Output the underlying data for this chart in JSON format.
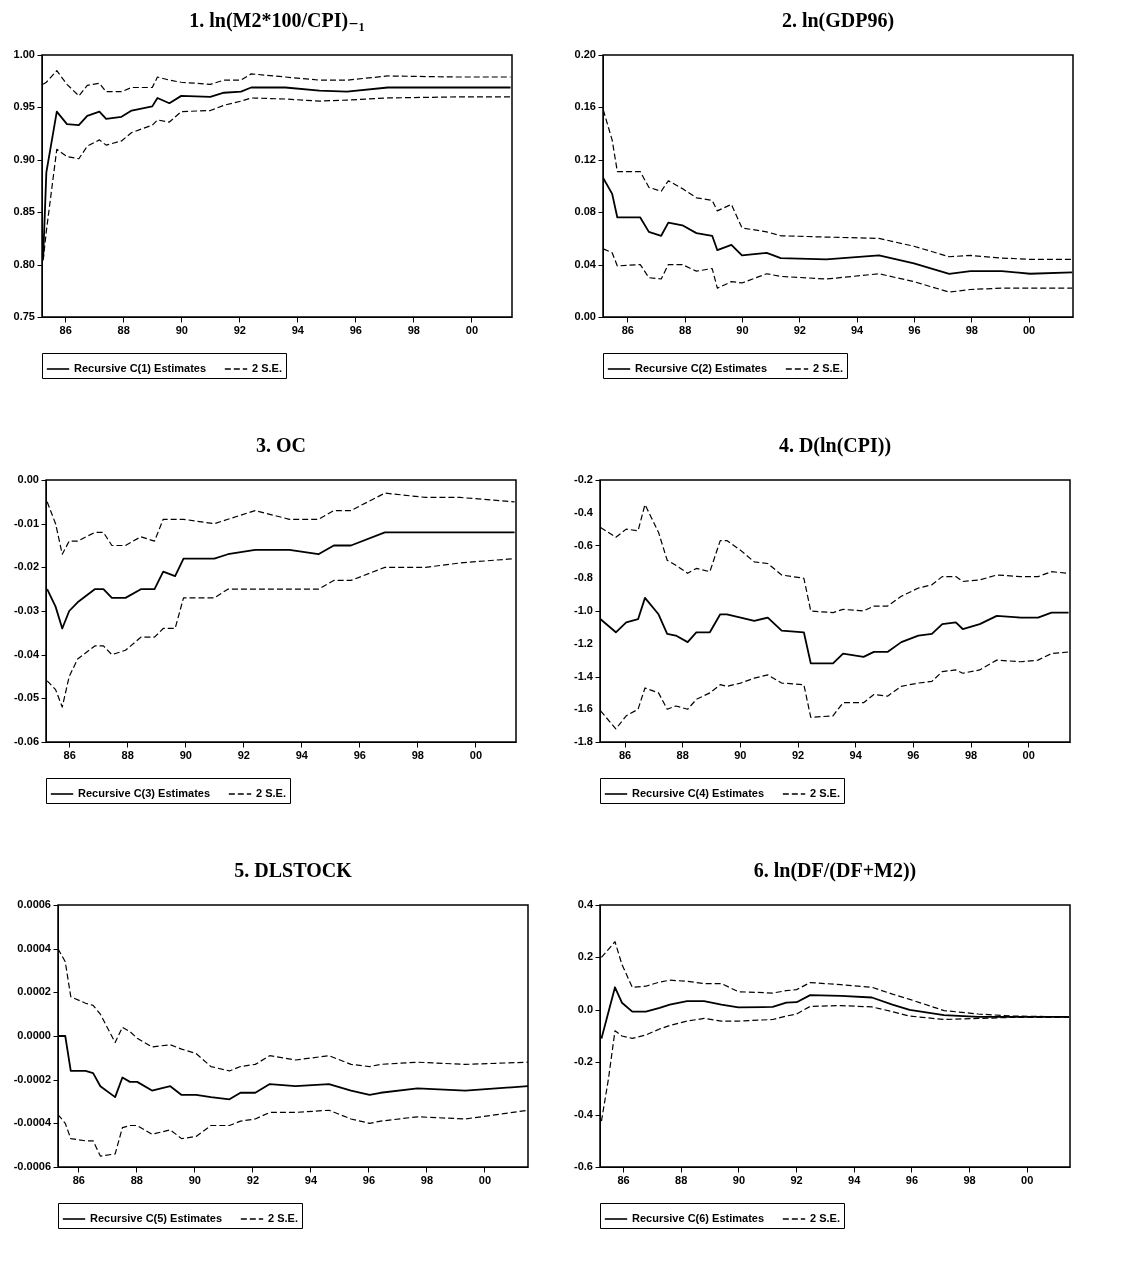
{
  "chart_data": [
    {
      "type": "line",
      "title": "1. ln(M2*100/CPI)₋₁",
      "legend": "bottom",
      "xlim": [
        1985.2,
        2001.4
      ],
      "ylim": [
        0.75,
        1.0
      ],
      "xticks": [
        {
          "value": 1986,
          "label": "86"
        },
        {
          "value": 1988,
          "label": "88"
        },
        {
          "value": 1990,
          "label": "90"
        },
        {
          "value": 1992,
          "label": "92"
        },
        {
          "value": 1994,
          "label": "94"
        },
        {
          "value": 1996,
          "label": "96"
        },
        {
          "value": 1998,
          "label": "98"
        },
        {
          "value": 2000,
          "label": "00"
        }
      ],
      "yticks": [
        0.75,
        {
          "value": 0.8,
          "label": "0.80"
        },
        0.85,
        {
          "value": 0.9,
          "label": "0.90"
        },
        0.95,
        {
          "value": 1.0,
          "label": "1.00"
        }
      ],
      "x": [
        1985.24,
        1985.35,
        1985.71,
        1986.06,
        1986.47,
        1986.76,
        1987.18,
        1987.41,
        1987.94,
        1988.29,
        1989.0,
        1989.18,
        1989.59,
        1990.0,
        1991.0,
        1991.47,
        1992.06,
        1992.41,
        1993.59,
        1994.76,
        1995.71,
        1997.12,
        1999.47,
        2001.35
      ],
      "series": [
        {
          "name": "Recursive C(1) Estimates",
          "color": "#000000",
          "line_style": "solid",
          "values": [
            0.806,
            0.888,
            0.946,
            0.934,
            0.933,
            0.942,
            0.946,
            0.939,
            0.941,
            0.947,
            0.951,
            0.959,
            0.954,
            0.961,
            0.96,
            0.964,
            0.965,
            0.969,
            0.969,
            0.966,
            0.965,
            0.969,
            0.969,
            0.969
          ]
        },
        {
          "name": "2 S.E.",
          "color": "#000000",
          "line_style": "dashed",
          "values": [
            0.972,
            0.974,
            0.985,
            0.972,
            0.961,
            0.971,
            0.973,
            0.965,
            0.965,
            0.969,
            0.969,
            0.979,
            0.976,
            0.974,
            0.972,
            0.976,
            0.976,
            0.982,
            0.979,
            0.976,
            0.976,
            0.98,
            0.979,
            0.979
          ]
        },
        {
          "color": "#000000",
          "line_style": "dashed",
          "values": [
            0.804,
            0.832,
            0.91,
            0.903,
            0.901,
            0.913,
            0.919,
            0.914,
            0.918,
            0.926,
            0.933,
            0.938,
            0.936,
            0.946,
            0.947,
            0.952,
            0.956,
            0.959,
            0.958,
            0.956,
            0.957,
            0.959,
            0.96,
            0.96
          ]
        }
      ]
    },
    {
      "type": "line",
      "title": "2. ln(GDP96)",
      "legend": "bottom",
      "xlim": [
        1985.15,
        2001.55
      ],
      "ylim": [
        0,
        0.2
      ],
      "xticks": [
        {
          "value": 1986,
          "label": "86"
        },
        {
          "value": 1988,
          "label": "88"
        },
        {
          "value": 1990,
          "label": "90"
        },
        {
          "value": 1992,
          "label": "92"
        },
        {
          "value": 1994,
          "label": "94"
        },
        {
          "value": 1996,
          "label": "96"
        },
        {
          "value": 1998,
          "label": "98"
        },
        {
          "value": 2000,
          "label": "00"
        }
      ],
      "yticks": [
        {
          "value": 0,
          "label": "0.00"
        },
        0.04,
        0.08,
        0.12,
        0.16,
        {
          "value": 0.2,
          "label": "0.20"
        }
      ],
      "x": [
        1985.16,
        1985.47,
        1985.65,
        1986.45,
        1986.75,
        1987.18,
        1987.43,
        1987.92,
        1988.41,
        1988.96,
        1989.14,
        1989.63,
        1990.0,
        1990.86,
        1991.35,
        1992.94,
        1994.78,
        1996.0,
        1997.23,
        1997.97,
        1999.07,
        2000.05,
        2001.52
      ],
      "series": [
        {
          "name": "Recursive C(2) Estimates",
          "color": "#000000",
          "line_style": "solid",
          "values": [
            0.106,
            0.094,
            0.076,
            0.076,
            0.065,
            0.062,
            0.072,
            0.07,
            0.064,
            0.062,
            0.051,
            0.055,
            0.047,
            0.049,
            0.045,
            0.044,
            0.047,
            0.041,
            0.033,
            0.035,
            0.035,
            0.033,
            0.034
          ]
        },
        {
          "name": "2 S.E.",
          "color": "#000000",
          "line_style": "dashed",
          "values": [
            0.158,
            0.135,
            0.111,
            0.111,
            0.099,
            0.096,
            0.104,
            0.098,
            0.091,
            0.089,
            0.081,
            0.086,
            0.068,
            0.065,
            0.062,
            0.061,
            0.06,
            0.054,
            0.046,
            0.047,
            0.045,
            0.044,
            0.044
          ]
        },
        {
          "color": "#000000",
          "line_style": "dashed",
          "values": [
            0.052,
            0.049,
            0.039,
            0.04,
            0.03,
            0.029,
            0.04,
            0.04,
            0.035,
            0.037,
            0.022,
            0.027,
            0.026,
            0.033,
            0.031,
            0.029,
            0.033,
            0.027,
            0.019,
            0.021,
            0.022,
            0.022,
            0.022
          ]
        }
      ]
    },
    {
      "type": "line",
      "title": "3. OC",
      "legend": "bottom",
      "xlim": [
        1985.2,
        2001.4
      ],
      "ylim": [
        -0.06,
        0
      ],
      "xticks": [
        {
          "value": 1986,
          "label": "86"
        },
        {
          "value": 1988,
          "label": "88"
        },
        {
          "value": 1990,
          "label": "90"
        },
        {
          "value": 1992,
          "label": "92"
        },
        {
          "value": 1994,
          "label": "94"
        },
        {
          "value": 1996,
          "label": "96"
        },
        {
          "value": 1998,
          "label": "98"
        },
        {
          "value": 2000,
          "label": "00"
        }
      ],
      "yticks": [
        -0.06,
        -0.05,
        -0.04,
        -0.03,
        -0.02,
        -0.01,
        {
          "value": 0,
          "label": "0.00"
        }
      ],
      "x": [
        1985.24,
        1985.53,
        1985.76,
        1986.0,
        1986.29,
        1986.88,
        1987.18,
        1987.47,
        1987.94,
        1988.47,
        1988.94,
        1989.24,
        1989.65,
        1989.94,
        1991.0,
        1991.47,
        1992.41,
        1993.59,
        1994.59,
        1995.12,
        1995.71,
        1996.88,
        1998.29,
        1999.47,
        2001.35
      ],
      "series": [
        {
          "name": "Recursive C(3) Estimates",
          "color": "#000000",
          "line_style": "solid",
          "values": [
            -0.025,
            -0.029,
            -0.034,
            -0.03,
            -0.028,
            -0.025,
            -0.025,
            -0.027,
            -0.027,
            -0.025,
            -0.025,
            -0.021,
            -0.022,
            -0.018,
            -0.018,
            -0.017,
            -0.016,
            -0.016,
            -0.017,
            -0.015,
            -0.015,
            -0.012,
            -0.012,
            -0.012,
            -0.012
          ]
        },
        {
          "name": "2 S.E.",
          "color": "#000000",
          "line_style": "dashed",
          "values": [
            -0.005,
            -0.01,
            -0.017,
            -0.014,
            -0.014,
            -0.012,
            -0.012,
            -0.015,
            -0.015,
            -0.013,
            -0.014,
            -0.009,
            -0.009,
            -0.009,
            -0.01,
            -0.009,
            -0.007,
            -0.009,
            -0.009,
            -0.007,
            -0.007,
            -0.003,
            -0.004,
            -0.004,
            -0.005
          ]
        },
        {
          "color": "#000000",
          "line_style": "dashed",
          "values": [
            -0.046,
            -0.048,
            -0.052,
            -0.045,
            -0.041,
            -0.038,
            -0.038,
            -0.04,
            -0.039,
            -0.036,
            -0.036,
            -0.034,
            -0.034,
            -0.027,
            -0.027,
            -0.025,
            -0.025,
            -0.025,
            -0.025,
            -0.023,
            -0.023,
            -0.02,
            -0.02,
            -0.019,
            -0.018
          ]
        }
      ]
    },
    {
      "type": "line",
      "title": "4. D(ln(CPI))",
      "legend": "bottom",
      "xlim": [
        1985.15,
        2001.45
      ],
      "ylim": [
        -1.8,
        -0.2
      ],
      "xticks": [
        {
          "value": 1986,
          "label": "86"
        },
        {
          "value": 1988,
          "label": "88"
        },
        {
          "value": 1990,
          "label": "90"
        },
        {
          "value": 1992,
          "label": "92"
        },
        {
          "value": 1994,
          "label": "94"
        },
        {
          "value": 1996,
          "label": "96"
        },
        {
          "value": 1998,
          "label": "98"
        },
        {
          "value": 2000,
          "label": "00"
        }
      ],
      "yticks": [
        -1.8,
        -1.6,
        -1.4,
        -1.2,
        {
          "value": -1.0,
          "label": "-1.0"
        },
        -0.8,
        -0.6,
        -0.4,
        -0.2
      ],
      "x": [
        1985.17,
        1985.7,
        1986.06,
        1986.47,
        1986.71,
        1987.18,
        1987.48,
        1987.78,
        1988.19,
        1988.49,
        1988.96,
        1989.32,
        1989.55,
        1990.03,
        1990.5,
        1990.97,
        1991.45,
        1992.22,
        1992.46,
        1993.23,
        1993.58,
        1994.29,
        1994.65,
        1995.12,
        1995.6,
        1996.19,
        1996.66,
        1997.02,
        1997.49,
        1997.73,
        1998.32,
        1998.91,
        1999.74,
        2000.34,
        2000.81,
        2001.4
      ],
      "series": [
        {
          "name": "Recursive C(4) Estimates",
          "color": "#000000",
          "line_style": "solid",
          "values": [
            -1.05,
            -1.13,
            -1.07,
            -1.05,
            -0.92,
            -1.02,
            -1.14,
            -1.15,
            -1.19,
            -1.13,
            -1.13,
            -1.02,
            -1.02,
            -1.04,
            -1.06,
            -1.04,
            -1.12,
            -1.13,
            -1.32,
            -1.32,
            -1.26,
            -1.28,
            -1.25,
            -1.25,
            -1.19,
            -1.15,
            -1.14,
            -1.08,
            -1.07,
            -1.11,
            -1.08,
            -1.03,
            -1.04,
            -1.04,
            -1.01,
            -1.01
          ]
        },
        {
          "name": "2 S.E.",
          "color": "#000000",
          "line_style": "dashed",
          "values": [
            -0.49,
            -0.55,
            -0.5,
            -0.51,
            -0.35,
            -0.52,
            -0.69,
            -0.72,
            -0.77,
            -0.74,
            -0.76,
            -0.57,
            -0.57,
            -0.63,
            -0.7,
            -0.71,
            -0.78,
            -0.8,
            -1.0,
            -1.01,
            -0.99,
            -1.0,
            -0.97,
            -0.97,
            -0.91,
            -0.86,
            -0.84,
            -0.79,
            -0.79,
            -0.82,
            -0.81,
            -0.78,
            -0.79,
            -0.79,
            -0.76,
            -0.77
          ]
        },
        {
          "color": "#000000",
          "line_style": "dashed",
          "values": [
            -1.61,
            -1.72,
            -1.64,
            -1.6,
            -1.47,
            -1.5,
            -1.6,
            -1.58,
            -1.6,
            -1.54,
            -1.5,
            -1.45,
            -1.46,
            -1.44,
            -1.41,
            -1.39,
            -1.44,
            -1.45,
            -1.65,
            -1.64,
            -1.56,
            -1.56,
            -1.51,
            -1.52,
            -1.46,
            -1.44,
            -1.43,
            -1.37,
            -1.36,
            -1.38,
            -1.36,
            -1.3,
            -1.31,
            -1.3,
            -1.26,
            -1.25
          ]
        }
      ]
    },
    {
      "type": "line",
      "title": "5. DLSTOCK",
      "legend": "bottom",
      "xlim": [
        1985.3,
        2001.5
      ],
      "ylim": [
        -0.0006,
        0.0006
      ],
      "xticks": [
        {
          "value": 1986,
          "label": "86"
        },
        {
          "value": 1988,
          "label": "88"
        },
        {
          "value": 1990,
          "label": "90"
        },
        {
          "value": 1992,
          "label": "92"
        },
        {
          "value": 1994,
          "label": "94"
        },
        {
          "value": 1996,
          "label": "96"
        },
        {
          "value": 1998,
          "label": "98"
        },
        {
          "value": 2000,
          "label": "00"
        }
      ],
      "yticks": [
        -0.0006,
        -0.0004,
        -0.0002,
        {
          "value": 0,
          "label": "0.0000"
        },
        0.0002,
        0.0004,
        0.0006
      ],
      "x": [
        1985.3,
        1985.55,
        1985.74,
        1986.25,
        1986.51,
        1986.76,
        1987.27,
        1987.52,
        1987.78,
        1988.03,
        1988.54,
        1989.17,
        1989.56,
        1990.06,
        1990.57,
        1991.21,
        1991.59,
        1992.1,
        1992.6,
        1993.49,
        1994.64,
        1995.4,
        1996.04,
        1996.42,
        1997.69,
        1999.34,
        2001.5
      ],
      "series": [
        {
          "name": "Recursive C(5) Estimates",
          "color": "#000000",
          "line_style": "solid",
          "values": [
            0,
            0,
            -0.00016,
            -0.00016,
            -0.00017,
            -0.00023,
            -0.00028,
            -0.00019,
            -0.00021,
            -0.00021,
            -0.00025,
            -0.00023,
            -0.00027,
            -0.00027,
            -0.00028,
            -0.00029,
            -0.00026,
            -0.00026,
            -0.00022,
            -0.00023,
            -0.00022,
            -0.00025,
            -0.00027,
            -0.00026,
            -0.00024,
            -0.00025,
            -0.00023
          ]
        },
        {
          "name": "2 S.E.",
          "color": "#000000",
          "line_style": "dashed",
          "values": [
            0.0004,
            0.00034,
            0.00018,
            0.00015,
            0.00014,
            0.0001,
            -3e-05,
            4e-05,
            2e-05,
            -1e-05,
            -5e-05,
            -4e-05,
            -6e-05,
            -8e-05,
            -0.00014,
            -0.00016,
            -0.00014,
            -0.00013,
            -9e-05,
            -0.00011,
            -9e-05,
            -0.00013,
            -0.00014,
            -0.00013,
            -0.00012,
            -0.00013,
            -0.00012
          ]
        },
        {
          "color": "#000000",
          "line_style": "dashed",
          "values": [
            -0.00036,
            -0.0004,
            -0.00047,
            -0.00048,
            -0.00048,
            -0.00055,
            -0.00054,
            -0.00042,
            -0.00041,
            -0.00041,
            -0.00045,
            -0.00043,
            -0.00047,
            -0.00046,
            -0.00041,
            -0.00041,
            -0.00039,
            -0.00038,
            -0.00035,
            -0.00035,
            -0.00034,
            -0.00038,
            -0.0004,
            -0.00039,
            -0.00037,
            -0.00038,
            -0.00034
          ]
        }
      ]
    },
    {
      "type": "line",
      "title": "6. ln(DF/(DF+M2))",
      "legend": "bottom",
      "xlim": [
        1985.2,
        2001.5
      ],
      "ylim": [
        -0.6,
        0.4
      ],
      "xticks": [
        {
          "value": 1986,
          "label": "86"
        },
        {
          "value": 1988,
          "label": "88"
        },
        {
          "value": 1990,
          "label": "90"
        },
        {
          "value": 1992,
          "label": "92"
        },
        {
          "value": 1994,
          "label": "94"
        },
        {
          "value": 1996,
          "label": "96"
        },
        {
          "value": 1998,
          "label": "98"
        },
        {
          "value": 2000,
          "label": "00"
        }
      ],
      "yticks": [
        -0.6,
        -0.4,
        -0.2,
        {
          "value": 0,
          "label": "0.0"
        },
        0.2,
        0.4
      ],
      "x": [
        1985.25,
        1985.72,
        1985.96,
        1986.32,
        1986.79,
        1987.27,
        1987.62,
        1988.22,
        1988.81,
        1989.41,
        1990.0,
        1991.19,
        1991.66,
        1992.02,
        1992.49,
        1993.56,
        1994.63,
        1995.34,
        1995.94,
        1997.13,
        1998.31,
        1999.5,
        2001.46
      ],
      "series": [
        {
          "name": "Recursive C(6) Estimates",
          "color": "#000000",
          "line_style": "solid",
          "values": [
            -0.11,
            0.086,
            0.027,
            -0.007,
            -0.007,
            0.007,
            0.02,
            0.033,
            0.033,
            0.02,
            0.009,
            0.011,
            0.027,
            0.029,
            0.056,
            0.053,
            0.047,
            0.02,
            0.0,
            -0.02,
            -0.027,
            -0.027,
            -0.027
          ]
        },
        {
          "name": "2 S.E.",
          "color": "#000000",
          "line_style": "dashed",
          "values": [
            0.2,
            0.26,
            0.173,
            0.086,
            0.09,
            0.106,
            0.113,
            0.109,
            0.1,
            0.1,
            0.069,
            0.064,
            0.073,
            0.077,
            0.104,
            0.096,
            0.086,
            0.06,
            0.04,
            -0.003,
            -0.016,
            -0.024,
            -0.027
          ]
        },
        {
          "color": "#000000",
          "line_style": "dashed",
          "x": [
            1985.25,
            1985.49,
            1985.72,
            1985.96,
            1986.32,
            1986.79,
            1987.27,
            1987.62,
            1988.22,
            1988.81,
            1989.41,
            1990.0,
            1991.19,
            1991.66,
            1992.02,
            1992.49,
            1993.56,
            1994.63,
            1995.34,
            1995.94,
            1997.13,
            1998.31,
            1999.5,
            2001.46
          ],
          "values": [
            -0.425,
            -0.266,
            -0.08,
            -0.1,
            -0.109,
            -0.096,
            -0.073,
            -0.06,
            -0.043,
            -0.033,
            -0.043,
            -0.043,
            -0.037,
            -0.024,
            -0.016,
            0.013,
            0.016,
            0.011,
            -0.007,
            -0.024,
            -0.037,
            -0.033,
            -0.029,
            -0.029
          ]
        }
      ]
    }
  ]
}
